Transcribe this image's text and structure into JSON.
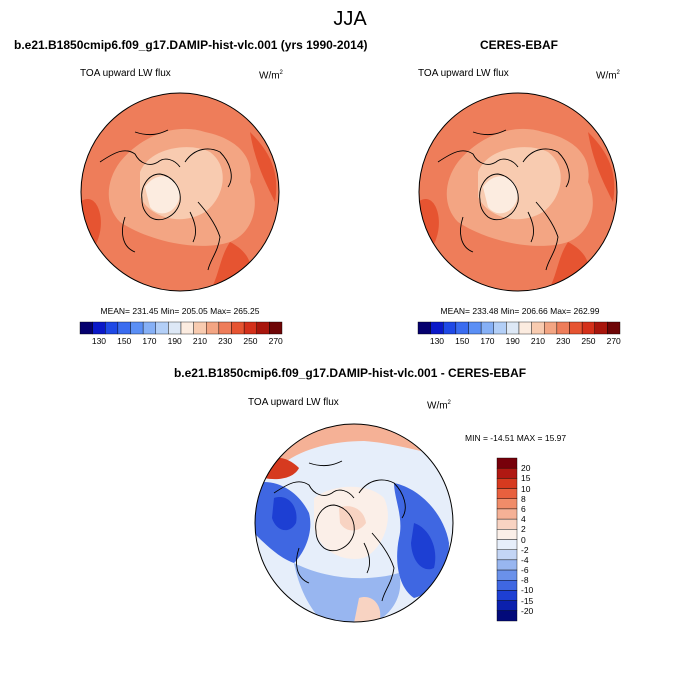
{
  "title": "JJA",
  "left_panel": {
    "case_title": "b.e21.B1850cmip6.f09_g17.DAMIP-hist-vlc.001 (yrs 1990-2014)",
    "variable": "TOA upward LW flux",
    "units_base": "W/m",
    "units_exp": "2",
    "stats": "MEAN= 231.45  Min= 205.05  Max= 265.25"
  },
  "right_panel": {
    "case_title": "CERES-EBAF",
    "variable": "TOA upward LW flux",
    "units_base": "W/m",
    "units_exp": "2",
    "stats": "MEAN= 233.48  Min= 206.66  Max= 262.99"
  },
  "diff_panel": {
    "case_title": "b.e21.B1850cmip6.f09_g17.DAMIP-hist-vlc.001 - CERES-EBAF",
    "variable": "TOA upward LW flux",
    "units_base": "W/m",
    "units_exp": "2",
    "stats": "MIN = -14.51  MAX =  15.97"
  },
  "abs_colorbar": {
    "colors": [
      "#05006e",
      "#0a18c8",
      "#1f49e6",
      "#3a6cf0",
      "#5b8ff5",
      "#86b0f6",
      "#b3cff7",
      "#dde8f6",
      "#fcece0",
      "#f8cbb0",
      "#f3a583",
      "#ee7d5a",
      "#e65431",
      "#d4301a",
      "#a8150c",
      "#6e0506"
    ],
    "labels": [
      "130",
      "150",
      "170",
      "190",
      "210",
      "230",
      "250",
      "270"
    ]
  },
  "diff_colorbar": {
    "colors": [
      "#77000a",
      "#b01812",
      "#d63a1f",
      "#e8603e",
      "#f08c69",
      "#f5b196",
      "#f8d3c2",
      "#fbefe8",
      "#e6eefa",
      "#c3d5f5",
      "#98b6f0",
      "#6a91ea",
      "#3f67e2",
      "#1d3fd3",
      "#0b20ad",
      "#020a7a"
    ],
    "labels": [
      "20",
      "15",
      "10",
      "8",
      "6",
      "4",
      "2",
      "0",
      "-2",
      "-4",
      "-6",
      "-8",
      "-10",
      "-15",
      "-20"
    ]
  }
}
